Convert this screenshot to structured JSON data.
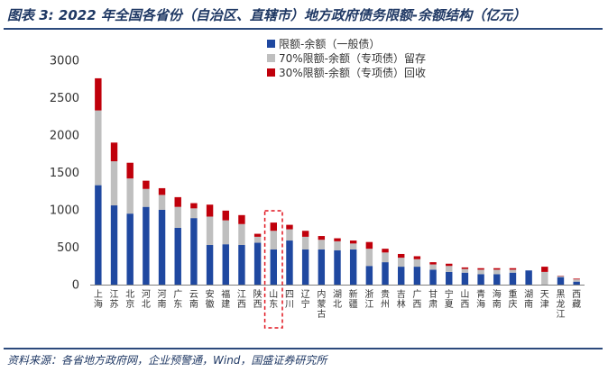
{
  "title": "图表 3: 2022 年全国各省份（自治区、直辖市）地方政府债务限额-余额结构（亿元）",
  "source": "资料来源：各省地方政府网，企业预警通，Wind，国盛证券研究所",
  "colors": {
    "series1": "#1f48a0",
    "series2": "#bfbfbf",
    "series3": "#c0000b",
    "highlight": "#e0141e",
    "axis": "#7f7f7f"
  },
  "chart_data": {
    "type": "bar",
    "stacked": true,
    "title": "图表 3: 2022 年全国各省份（自治区、直辖市）地方政府债务限额-余额结构（亿元）",
    "xlabel": "",
    "ylabel": "",
    "ylim": [
      0,
      3000
    ],
    "yticks": [
      0,
      500,
      1000,
      1500,
      2000,
      2500,
      3000
    ],
    "grid": false,
    "legend_position": "top-center",
    "highlight_category": "山东",
    "categories": [
      "上海",
      "江苏",
      "北京",
      "河北",
      "河南",
      "广东",
      "云南",
      "安徽",
      "福建",
      "江西",
      "陕西",
      "山东",
      "四川",
      "辽宁",
      "内蒙古",
      "湖北",
      "新疆",
      "浙江",
      "贵州",
      "吉林",
      "广西",
      "甘肃",
      "宁夏",
      "山西",
      "青海",
      "海南",
      "重庆",
      "湖南",
      "天津",
      "黑龙江",
      "西藏"
    ],
    "series": [
      {
        "name": "限额-余额（一般债）",
        "values": [
          1330,
          1060,
          950,
          1040,
          1000,
          760,
          890,
          530,
          540,
          530,
          560,
          470,
          590,
          470,
          470,
          460,
          470,
          250,
          300,
          240,
          240,
          200,
          170,
          160,
          140,
          140,
          160,
          190,
          0,
          100,
          40
        ]
      },
      {
        "name": "70%限额-余额（专项债）留存",
        "values": [
          1000,
          590,
          470,
          240,
          200,
          280,
          130,
          380,
          320,
          280,
          80,
          250,
          150,
          170,
          130,
          120,
          80,
          230,
          130,
          120,
          100,
          70,
          80,
          50,
          60,
          60,
          40,
          0,
          170,
          15,
          30
        ]
      },
      {
        "name": "30%限额-余额（专项债）回收",
        "values": [
          430,
          250,
          210,
          110,
          90,
          130,
          70,
          160,
          130,
          120,
          40,
          110,
          60,
          80,
          50,
          40,
          40,
          90,
          50,
          50,
          40,
          30,
          30,
          20,
          20,
          20,
          20,
          0,
          70,
          5,
          10
        ]
      }
    ]
  }
}
